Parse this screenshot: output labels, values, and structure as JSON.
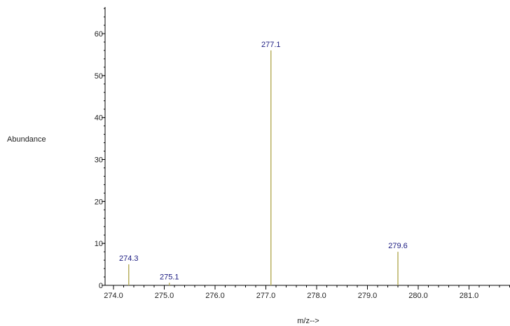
{
  "chart_data": {
    "type": "bar",
    "title": "",
    "xlabel": "m/z-->",
    "ylabel": "Abundance",
    "xlim": [
      273.9,
      281.9
    ],
    "ylim": [
      0,
      66
    ],
    "xticks_major": [
      274.0,
      275.0,
      276.0,
      277.0,
      278.0,
      279.0,
      280.0,
      281.0
    ],
    "xtick_labels": [
      "274.0",
      "275.0",
      "276.0",
      "277.0",
      "278.0",
      "279.0",
      "280.0",
      "281.0"
    ],
    "yticks_major": [
      0,
      10,
      20,
      30,
      40,
      50,
      60
    ],
    "ytick_labels": [
      "0",
      "10",
      "20",
      "30",
      "40",
      "50",
      "60"
    ],
    "grid": false,
    "legend": "none",
    "series": [
      {
        "peaks": [
          {
            "mz": 274.3,
            "abundance": 5,
            "label": "274.3"
          },
          {
            "mz": 275.1,
            "abundance": 0.6,
            "label": "275.1"
          },
          {
            "mz": 277.1,
            "abundance": 56,
            "label": "277.1"
          },
          {
            "mz": 279.6,
            "abundance": 8,
            "label": "279.6"
          }
        ]
      }
    ],
    "colors": {
      "peak": "#b8b060",
      "axis": "#000000",
      "peak_label": "#1a1a80"
    }
  }
}
